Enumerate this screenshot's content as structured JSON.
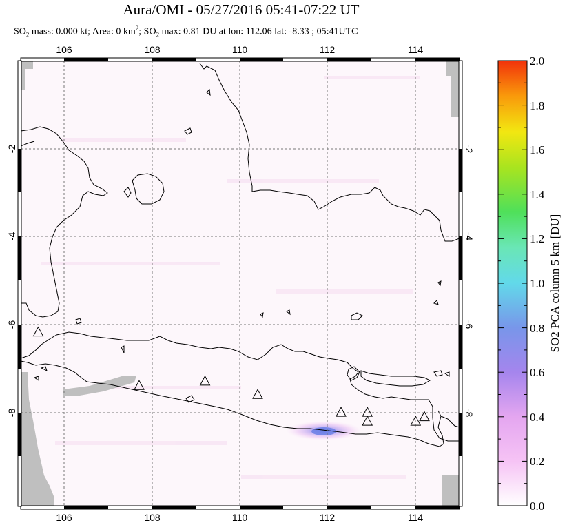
{
  "header": {
    "title": "Aura/OMI - 05/27/2016 05:41-07:22 UT",
    "subtitle": {
      "p1": "SO",
      "p1_sub": "2",
      "p2": " mass: 0.000 kt; Area: 0 km",
      "p2_sup": "2",
      "p3": "; SO",
      "p3_sub": "2",
      "p4": " max: 0.81 DU at lon: 112.06 lat: -8.33 ; 05:41UTC"
    }
  },
  "map": {
    "lon_range": [
      105.0,
      115.0
    ],
    "lat_range": [
      -10.0,
      0.0
    ],
    "lon_ticks": [
      "106",
      "108",
      "110",
      "112",
      "114"
    ],
    "lat_ticks": [
      "-2",
      "-4",
      "-6",
      "-8"
    ],
    "volcano_icon": "triangle-icon",
    "volcanoes": [
      {
        "lon": 105.4,
        "lat": -6.1
      },
      {
        "lon": 107.7,
        "lat": -7.3
      },
      {
        "lon": 109.2,
        "lat": -7.2
      },
      {
        "lon": 110.4,
        "lat": -7.5
      },
      {
        "lon": 112.3,
        "lat": -7.9
      },
      {
        "lon": 112.9,
        "lat": -7.9
      },
      {
        "lon": 112.9,
        "lat": -8.1
      },
      {
        "lon": 114.0,
        "lat": -8.1
      },
      {
        "lon": 114.2,
        "lat": -8.0
      }
    ],
    "plume": {
      "lon": 112.06,
      "lat": -8.33,
      "value_du": 0.81
    }
  },
  "colorbar": {
    "label": "SO2 PCA column 5 km [DU]",
    "ticks": [
      "0.0",
      "0.2",
      "0.4",
      "0.6",
      "0.8",
      "1.0",
      "1.2",
      "1.4",
      "1.6",
      "1.8",
      "2.0"
    ],
    "colors": [
      "#ffffff",
      "#f6c3f5",
      "#a585ed",
      "#6a8be8",
      "#62d9ea",
      "#6ae6b6",
      "#4fe05a",
      "#a9e41f",
      "#f2e711",
      "#f99a0b",
      "#f2320b"
    ]
  }
}
